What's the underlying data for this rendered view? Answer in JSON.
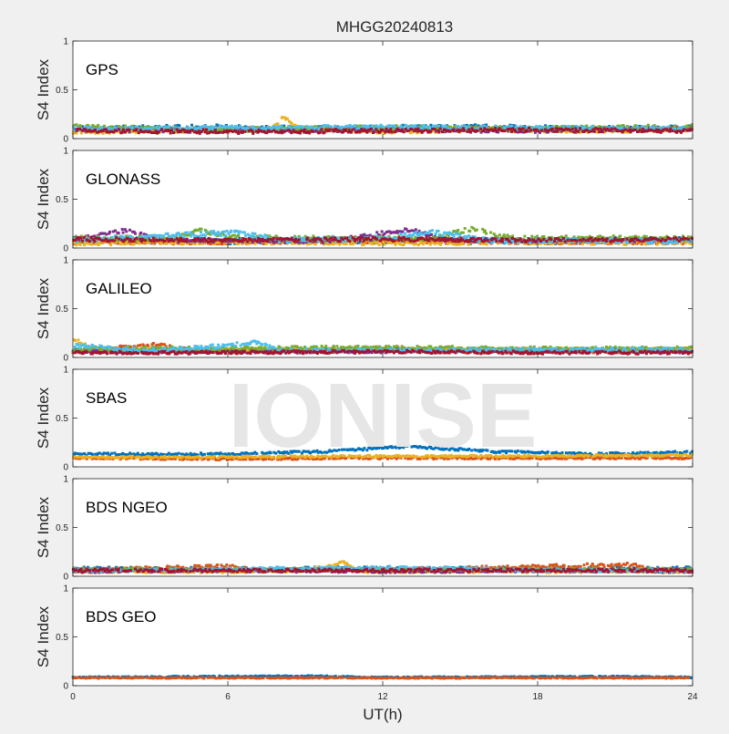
{
  "title": "MHGG20240813",
  "watermark": "IONISE",
  "xlabel": "UT(h)",
  "ylabel": "S4 Index",
  "xticks": [
    "0",
    "6",
    "12",
    "18",
    "24"
  ],
  "yticks": [
    "0",
    "0.5",
    "1"
  ],
  "colors": {
    "figure_bg": "#f0f0f0",
    "axes_bg": "#ffffff",
    "watermark": "#e6e6e6",
    "series": [
      "#0072BD",
      "#D95319",
      "#EDB120",
      "#7E2F8E",
      "#77AC30",
      "#4DBEEE",
      "#A2142F"
    ]
  },
  "chart_data": [
    {
      "type": "scatter",
      "panel_label": "GPS",
      "xlim": [
        0,
        24
      ],
      "ylim": [
        0,
        1
      ],
      "series": [
        {
          "color": "#0072BD",
          "base": [
            [
              0,
              0.1
            ],
            [
              3,
              0.11
            ],
            [
              6,
              0.12
            ],
            [
              9,
              0.1
            ],
            [
              12,
              0.11
            ],
            [
              15,
              0.12
            ],
            [
              18,
              0.11
            ],
            [
              21,
              0.1
            ],
            [
              24,
              0.11
            ]
          ],
          "spread": 0.025
        },
        {
          "color": "#D95319",
          "base": [
            [
              0,
              0.08
            ],
            [
              4,
              0.09
            ],
            [
              8,
              0.1
            ],
            [
              12,
              0.09
            ],
            [
              16,
              0.1
            ],
            [
              20,
              0.09
            ],
            [
              24,
              0.1
            ]
          ],
          "spread": 0.02
        },
        {
          "color": "#EDB120",
          "base": [
            [
              0,
              0.07
            ],
            [
              4,
              0.08
            ],
            [
              7.6,
              0.1
            ],
            [
              8.2,
              0.22
            ],
            [
              8.8,
              0.1
            ],
            [
              12,
              0.07
            ],
            [
              16,
              0.09
            ],
            [
              20,
              0.08
            ],
            [
              24,
              0.09
            ]
          ],
          "spread": 0.02
        },
        {
          "color": "#7E2F8E",
          "base": [
            [
              0,
              0.09
            ],
            [
              6,
              0.08
            ],
            [
              12,
              0.09
            ],
            [
              18,
              0.08
            ],
            [
              24,
              0.1
            ]
          ],
          "spread": 0.02
        },
        {
          "color": "#77AC30",
          "base": [
            [
              0,
              0.12
            ],
            [
              3,
              0.1
            ],
            [
              6,
              0.09
            ],
            [
              12,
              0.11
            ],
            [
              18,
              0.1
            ],
            [
              24,
              0.12
            ]
          ],
          "spread": 0.025
        },
        {
          "color": "#4DBEEE",
          "base": [
            [
              0,
              0.1
            ],
            [
              6,
              0.11
            ],
            [
              12,
              0.12
            ],
            [
              18,
              0.11
            ],
            [
              24,
              0.1
            ]
          ],
          "spread": 0.02
        },
        {
          "color": "#A2142F",
          "base": [
            [
              0,
              0.08
            ],
            [
              6,
              0.07
            ],
            [
              12,
              0.08
            ],
            [
              18,
              0.09
            ],
            [
              24,
              0.08
            ]
          ],
          "spread": 0.02
        }
      ]
    },
    {
      "type": "scatter",
      "panel_label": "GLONASS",
      "xlim": [
        0,
        24
      ],
      "ylim": [
        0,
        1
      ],
      "series": [
        {
          "color": "#0072BD",
          "base": [
            [
              0,
              0.08
            ],
            [
              6,
              0.07
            ],
            [
              12,
              0.08
            ],
            [
              18,
              0.07
            ],
            [
              24,
              0.09
            ]
          ],
          "spread": 0.03
        },
        {
          "color": "#D95319",
          "base": [
            [
              0,
              0.06
            ],
            [
              6,
              0.06
            ],
            [
              12,
              0.07
            ],
            [
              18,
              0.06
            ],
            [
              24,
              0.06
            ]
          ],
          "spread": 0.02
        },
        {
          "color": "#EDB120",
          "base": [
            [
              0,
              0.05
            ],
            [
              6,
              0.06
            ],
            [
              12,
              0.05
            ],
            [
              18,
              0.06
            ],
            [
              24,
              0.05
            ]
          ],
          "spread": 0.02
        },
        {
          "color": "#7E2F8E",
          "base": [
            [
              0,
              0.08
            ],
            [
              2,
              0.18
            ],
            [
              3.5,
              0.08
            ],
            [
              10,
              0.07
            ],
            [
              13,
              0.19
            ],
            [
              14.5,
              0.08
            ],
            [
              24,
              0.08
            ]
          ],
          "spread": 0.02
        },
        {
          "color": "#77AC30",
          "base": [
            [
              0,
              0.1
            ],
            [
              4,
              0.1
            ],
            [
              5,
              0.18
            ],
            [
              6.5,
              0.1
            ],
            [
              14,
              0.1
            ],
            [
              15.5,
              0.2
            ],
            [
              17,
              0.1
            ],
            [
              24,
              0.1
            ]
          ],
          "spread": 0.025
        },
        {
          "color": "#4DBEEE",
          "base": [
            [
              0,
              0.08
            ],
            [
              6.5,
              0.16
            ],
            [
              8,
              0.08
            ],
            [
              12,
              0.1
            ],
            [
              14,
              0.16
            ],
            [
              16,
              0.08
            ],
            [
              24,
              0.07
            ]
          ],
          "spread": 0.025
        },
        {
          "color": "#A2142F",
          "base": [
            [
              0,
              0.09
            ],
            [
              6,
              0.08
            ],
            [
              12,
              0.09
            ],
            [
              18,
              0.08
            ],
            [
              24,
              0.09
            ]
          ],
          "spread": 0.02
        }
      ]
    },
    {
      "type": "scatter",
      "panel_label": "GALILEO",
      "xlim": [
        0,
        24
      ],
      "ylim": [
        0,
        1
      ],
      "series": [
        {
          "color": "#0072BD",
          "base": [
            [
              0,
              0.08
            ],
            [
              6,
              0.07
            ],
            [
              12,
              0.08
            ],
            [
              18,
              0.07
            ],
            [
              24,
              0.08
            ]
          ],
          "spread": 0.02
        },
        {
          "color": "#D95319",
          "base": [
            [
              0,
              0.06
            ],
            [
              3.2,
              0.13
            ],
            [
              5,
              0.06
            ],
            [
              12,
              0.07
            ],
            [
              18,
              0.06
            ],
            [
              24,
              0.07
            ]
          ],
          "spread": 0.02
        },
        {
          "color": "#EDB120",
          "base": [
            [
              0,
              0.2
            ],
            [
              0.8,
              0.08
            ],
            [
              12,
              0.08
            ],
            [
              18,
              0.08
            ],
            [
              24,
              0.08
            ]
          ],
          "spread": 0.02
        },
        {
          "color": "#7E2F8E",
          "base": [
            [
              0,
              0.06
            ],
            [
              6,
              0.06
            ],
            [
              12,
              0.06
            ],
            [
              18,
              0.07
            ],
            [
              24,
              0.06
            ]
          ],
          "spread": 0.015
        },
        {
          "color": "#77AC30",
          "base": [
            [
              0,
              0.09
            ],
            [
              6,
              0.09
            ],
            [
              12,
              0.1
            ],
            [
              18,
              0.09
            ],
            [
              24,
              0.09
            ]
          ],
          "spread": 0.02
        },
        {
          "color": "#4DBEEE",
          "base": [
            [
              0,
              0.12
            ],
            [
              3,
              0.07
            ],
            [
              6,
              0.12
            ],
            [
              7,
              0.16
            ],
            [
              8,
              0.07
            ],
            [
              24,
              0.08
            ]
          ],
          "spread": 0.02
        },
        {
          "color": "#A2142F",
          "base": [
            [
              0,
              0.05
            ],
            [
              6,
              0.05
            ],
            [
              12,
              0.06
            ],
            [
              18,
              0.05
            ],
            [
              24,
              0.05
            ]
          ],
          "spread": 0.015
        }
      ]
    },
    {
      "type": "scatter",
      "panel_label": "SBAS",
      "xlim": [
        0,
        24
      ],
      "ylim": [
        0,
        1
      ],
      "series": [
        {
          "color": "#0072BD",
          "base": [
            [
              0,
              0.13
            ],
            [
              6,
              0.13
            ],
            [
              10,
              0.16
            ],
            [
              13,
              0.21
            ],
            [
              16,
              0.16
            ],
            [
              20,
              0.13
            ],
            [
              24,
              0.15
            ]
          ],
          "spread": 0.012
        },
        {
          "color": "#D95319",
          "base": [
            [
              0,
              0.09
            ],
            [
              6,
              0.08
            ],
            [
              12,
              0.09
            ],
            [
              18,
              0.09
            ],
            [
              24,
              0.09
            ]
          ],
          "spread": 0.01
        },
        {
          "color": "#EDB120",
          "base": [
            [
              0,
              0.1
            ],
            [
              6,
              0.1
            ],
            [
              12,
              0.11
            ],
            [
              18,
              0.11
            ],
            [
              24,
              0.12
            ]
          ],
          "spread": 0.01
        }
      ]
    },
    {
      "type": "scatter",
      "panel_label": "BDS NGEO",
      "xlim": [
        0,
        24
      ],
      "ylim": [
        0,
        1
      ],
      "series": [
        {
          "color": "#0072BD",
          "base": [
            [
              0,
              0.08
            ],
            [
              6,
              0.07
            ],
            [
              12,
              0.08
            ],
            [
              18,
              0.07
            ],
            [
              24,
              0.08
            ]
          ],
          "spread": 0.02
        },
        {
          "color": "#D95319",
          "base": [
            [
              0,
              0.06
            ],
            [
              6,
              0.1
            ],
            [
              7,
              0.06
            ],
            [
              12,
              0.06
            ],
            [
              21.6,
              0.12
            ],
            [
              22.5,
              0.06
            ],
            [
              24,
              0.06
            ]
          ],
          "spread": 0.02
        },
        {
          "color": "#EDB120",
          "base": [
            [
              0,
              0.05
            ],
            [
              6,
              0.05
            ],
            [
              9,
              0.06
            ],
            [
              10.5,
              0.14
            ],
            [
              11,
              0.05
            ],
            [
              24,
              0.05
            ]
          ],
          "spread": 0.015
        },
        {
          "color": "#7E2F8E",
          "base": [
            [
              0,
              0.05
            ],
            [
              6,
              0.06
            ],
            [
              12,
              0.05
            ],
            [
              18,
              0.06
            ],
            [
              24,
              0.05
            ]
          ],
          "spread": 0.015
        },
        {
          "color": "#77AC30",
          "base": [
            [
              0,
              0.07
            ],
            [
              6,
              0.07
            ],
            [
              12,
              0.07
            ],
            [
              18,
              0.07
            ],
            [
              24,
              0.07
            ]
          ],
          "spread": 0.015
        },
        {
          "color": "#4DBEEE",
          "base": [
            [
              0,
              0.06
            ],
            [
              3,
              0.06
            ],
            [
              6,
              0.07
            ],
            [
              12,
              0.09
            ],
            [
              18,
              0.06
            ],
            [
              24,
              0.06
            ]
          ],
          "spread": 0.015
        },
        {
          "color": "#A2142F",
          "base": [
            [
              0,
              0.06
            ],
            [
              6,
              0.06
            ],
            [
              12,
              0.06
            ],
            [
              18,
              0.06
            ],
            [
              24,
              0.06
            ]
          ],
          "spread": 0.015
        }
      ]
    },
    {
      "type": "scatter",
      "panel_label": "BDS GEO",
      "xlim": [
        0,
        24
      ],
      "ylim": [
        0,
        1
      ],
      "series": [
        {
          "color": "#0072BD",
          "base": [
            [
              0,
              0.085
            ],
            [
              9,
              0.1
            ],
            [
              12,
              0.085
            ],
            [
              21,
              0.095
            ],
            [
              24,
              0.085
            ]
          ],
          "spread": 0.006
        },
        {
          "color": "#D95319",
          "base": [
            [
              0,
              0.08
            ],
            [
              6,
              0.08
            ],
            [
              12,
              0.08
            ],
            [
              18,
              0.08
            ],
            [
              24,
              0.08
            ]
          ],
          "spread": 0.005
        }
      ]
    }
  ]
}
